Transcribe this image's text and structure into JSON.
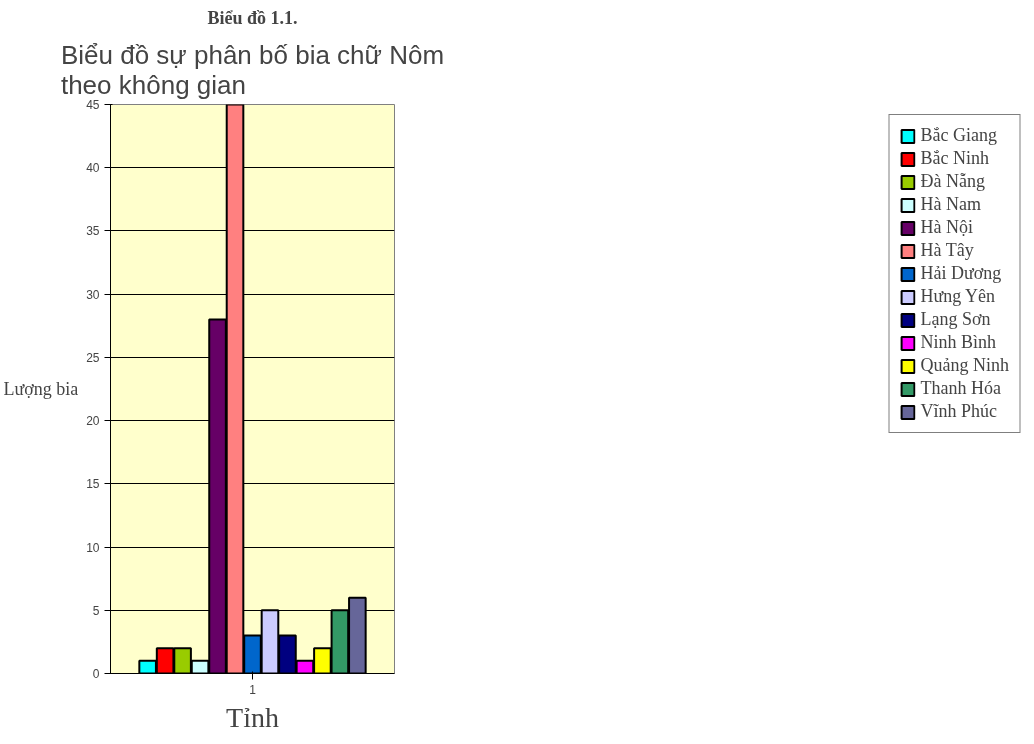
{
  "chart_data": {
    "type": "bar",
    "title": "Biểu đồ sự phân bố bia chữ Nôm\ntheo không gian",
    "annotations": [
      "Biểu đồ 1.1."
    ],
    "xlabel": "Tỉnh",
    "ylabel": "Lượng bia",
    "categories": [
      "1"
    ],
    "series": [
      {
        "name": "Bắc Giang",
        "color": "#00ffff",
        "values": [
          1
        ]
      },
      {
        "name": "Bắc Ninh",
        "color": "#ff0000",
        "values": [
          2
        ]
      },
      {
        "name": "Đà Nẵng",
        "color": "#99cc00",
        "values": [
          2
        ]
      },
      {
        "name": "Hà Nam",
        "color": "#ccffff",
        "values": [
          1
        ]
      },
      {
        "name": "Hà Nội",
        "color": "#660066",
        "values": [
          28
        ]
      },
      {
        "name": "Hà Tây",
        "color": "#ff8080",
        "values": [
          45
        ]
      },
      {
        "name": "Hải Dương",
        "color": "#0066cc",
        "values": [
          3
        ]
      },
      {
        "name": "Hưng Yên",
        "color": "#ccccff",
        "values": [
          5
        ]
      },
      {
        "name": "Lạng Sơn",
        "color": "#000080",
        "values": [
          3
        ]
      },
      {
        "name": "Ninh Bình",
        "color": "#ff00ff",
        "values": [
          1
        ]
      },
      {
        "name": "Quảng Ninh",
        "color": "#ffff00",
        "values": [
          2
        ]
      },
      {
        "name": "Thanh Hóa",
        "color": "#339966",
        "values": [
          5
        ]
      },
      {
        "name": "Vĩnh Phúc",
        "color": "#666699",
        "values": [
          6
        ]
      }
    ],
    "ylim": [
      0,
      45
    ],
    "yticks": [
      0,
      5,
      10,
      15,
      20,
      25,
      30,
      35,
      40,
      45
    ],
    "grid": "y",
    "legend": "right"
  }
}
